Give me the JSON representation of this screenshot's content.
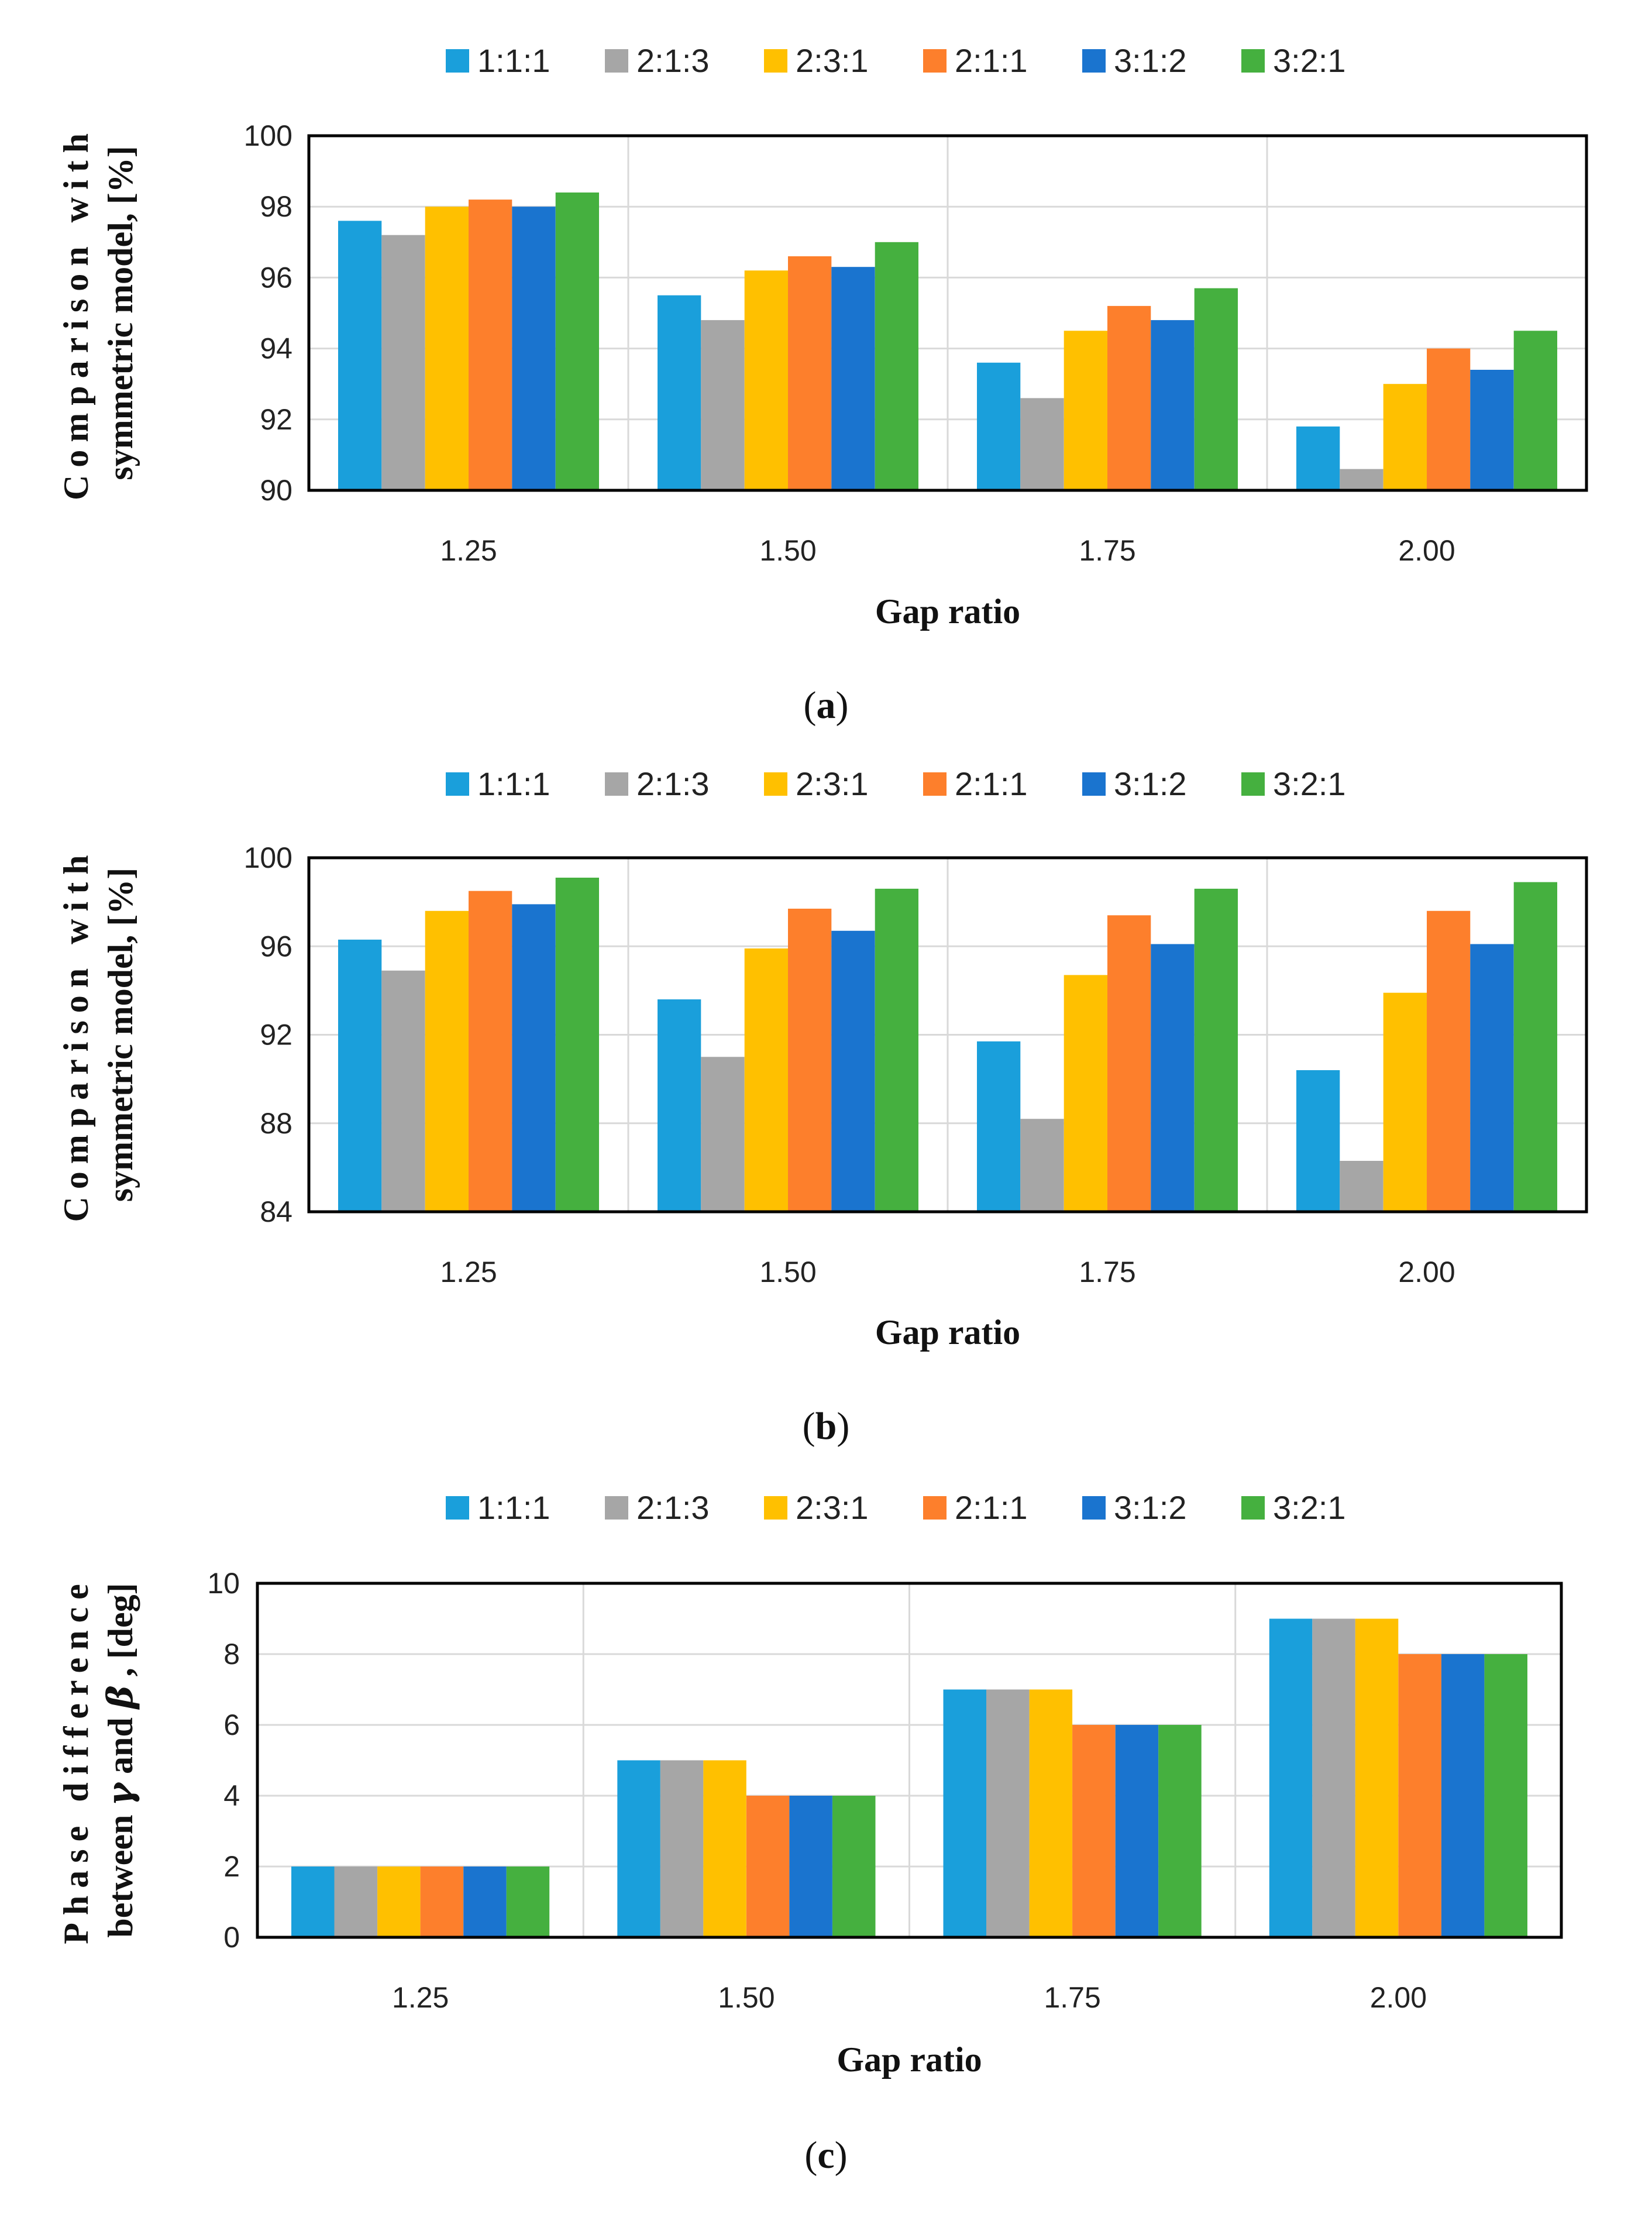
{
  "chart_data": [
    {
      "type": "bar",
      "panel": "a",
      "caption_letter": "a",
      "title": "",
      "xlabel": "Gap ratio",
      "ylabel_line1": "Comparison with",
      "ylabel_line2": "symmetric model, [%]",
      "categories": [
        "1.25",
        "1.50",
        "1.75",
        "2.00"
      ],
      "ylim": [
        90,
        100
      ],
      "yticks": [
        "90",
        "92",
        "94",
        "96",
        "98",
        "100"
      ],
      "series": [
        {
          "name": "1:1:1",
          "color": "#1a9fdb",
          "values": [
            97.6,
            95.5,
            93.6,
            91.8
          ]
        },
        {
          "name": "2:1:3",
          "color": "#a6a6a6",
          "values": [
            97.2,
            94.8,
            92.6,
            90.6
          ]
        },
        {
          "name": "2:3:1",
          "color": "#ffc000",
          "values": [
            98.0,
            96.2,
            94.5,
            93.0
          ]
        },
        {
          "name": "2:1:1",
          "color": "#fd7f2c",
          "values": [
            98.2,
            96.6,
            95.2,
            94.0
          ]
        },
        {
          "name": "3:1:2",
          "color": "#1a74cf",
          "values": [
            98.0,
            96.3,
            94.8,
            93.4
          ]
        },
        {
          "name": "3:2:1",
          "color": "#45b03f",
          "values": [
            98.4,
            97.0,
            95.7,
            94.5
          ]
        }
      ]
    },
    {
      "type": "bar",
      "panel": "b",
      "caption_letter": "b",
      "title": "",
      "xlabel": "Gap ratio",
      "ylabel_line1": "Comparison with",
      "ylabel_line2": "symmetric model, [%]",
      "categories": [
        "1.25",
        "1.50",
        "1.75",
        "2.00"
      ],
      "ylim": [
        84,
        100
      ],
      "yticks": [
        "84",
        "88",
        "92",
        "96",
        "100"
      ],
      "series": [
        {
          "name": "1:1:1",
          "color": "#1a9fdb",
          "values": [
            96.3,
            93.6,
            91.7,
            90.4
          ]
        },
        {
          "name": "2:1:3",
          "color": "#a6a6a6",
          "values": [
            94.9,
            91.0,
            88.2,
            86.3
          ]
        },
        {
          "name": "2:3:1",
          "color": "#ffc000",
          "values": [
            97.6,
            95.9,
            94.7,
            93.9
          ]
        },
        {
          "name": "2:1:1",
          "color": "#fd7f2c",
          "values": [
            98.5,
            97.7,
            97.4,
            97.6
          ]
        },
        {
          "name": "3:1:2",
          "color": "#1a74cf",
          "values": [
            97.9,
            96.7,
            96.1,
            96.1
          ]
        },
        {
          "name": "3:2:1",
          "color": "#45b03f",
          "values": [
            99.1,
            98.6,
            98.6,
            98.9
          ]
        }
      ]
    },
    {
      "type": "bar",
      "panel": "c",
      "caption_letter": "c",
      "title": "",
      "xlabel": "Gap ratio",
      "ylabel_line1": "Phase difference",
      "ylabel_line2_prefix": "between",
      "ylabel_line2_sym1": "γ",
      "ylabel_line2_mid": "and",
      "ylabel_line2_sym2": "β",
      "ylabel_line2_suffix": ", [deg]",
      "categories": [
        "1.25",
        "1.50",
        "1.75",
        "2.00"
      ],
      "ylim": [
        0,
        10
      ],
      "yticks": [
        "0",
        "2",
        "4",
        "6",
        "8",
        "10"
      ],
      "series": [
        {
          "name": "1:1:1",
          "color": "#1a9fdb",
          "values": [
            2,
            5,
            7,
            9
          ]
        },
        {
          "name": "2:1:3",
          "color": "#a6a6a6",
          "values": [
            2,
            5,
            7,
            9
          ]
        },
        {
          "name": "2:3:1",
          "color": "#ffc000",
          "values": [
            2,
            5,
            7,
            9
          ]
        },
        {
          "name": "2:1:1",
          "color": "#fd7f2c",
          "values": [
            2,
            4,
            6,
            8
          ]
        },
        {
          "name": "3:1:2",
          "color": "#1a74cf",
          "values": [
            2,
            4,
            6,
            8
          ]
        },
        {
          "name": "3:2:1",
          "color": "#45b03f",
          "values": [
            2,
            4,
            6,
            8
          ]
        }
      ]
    }
  ]
}
